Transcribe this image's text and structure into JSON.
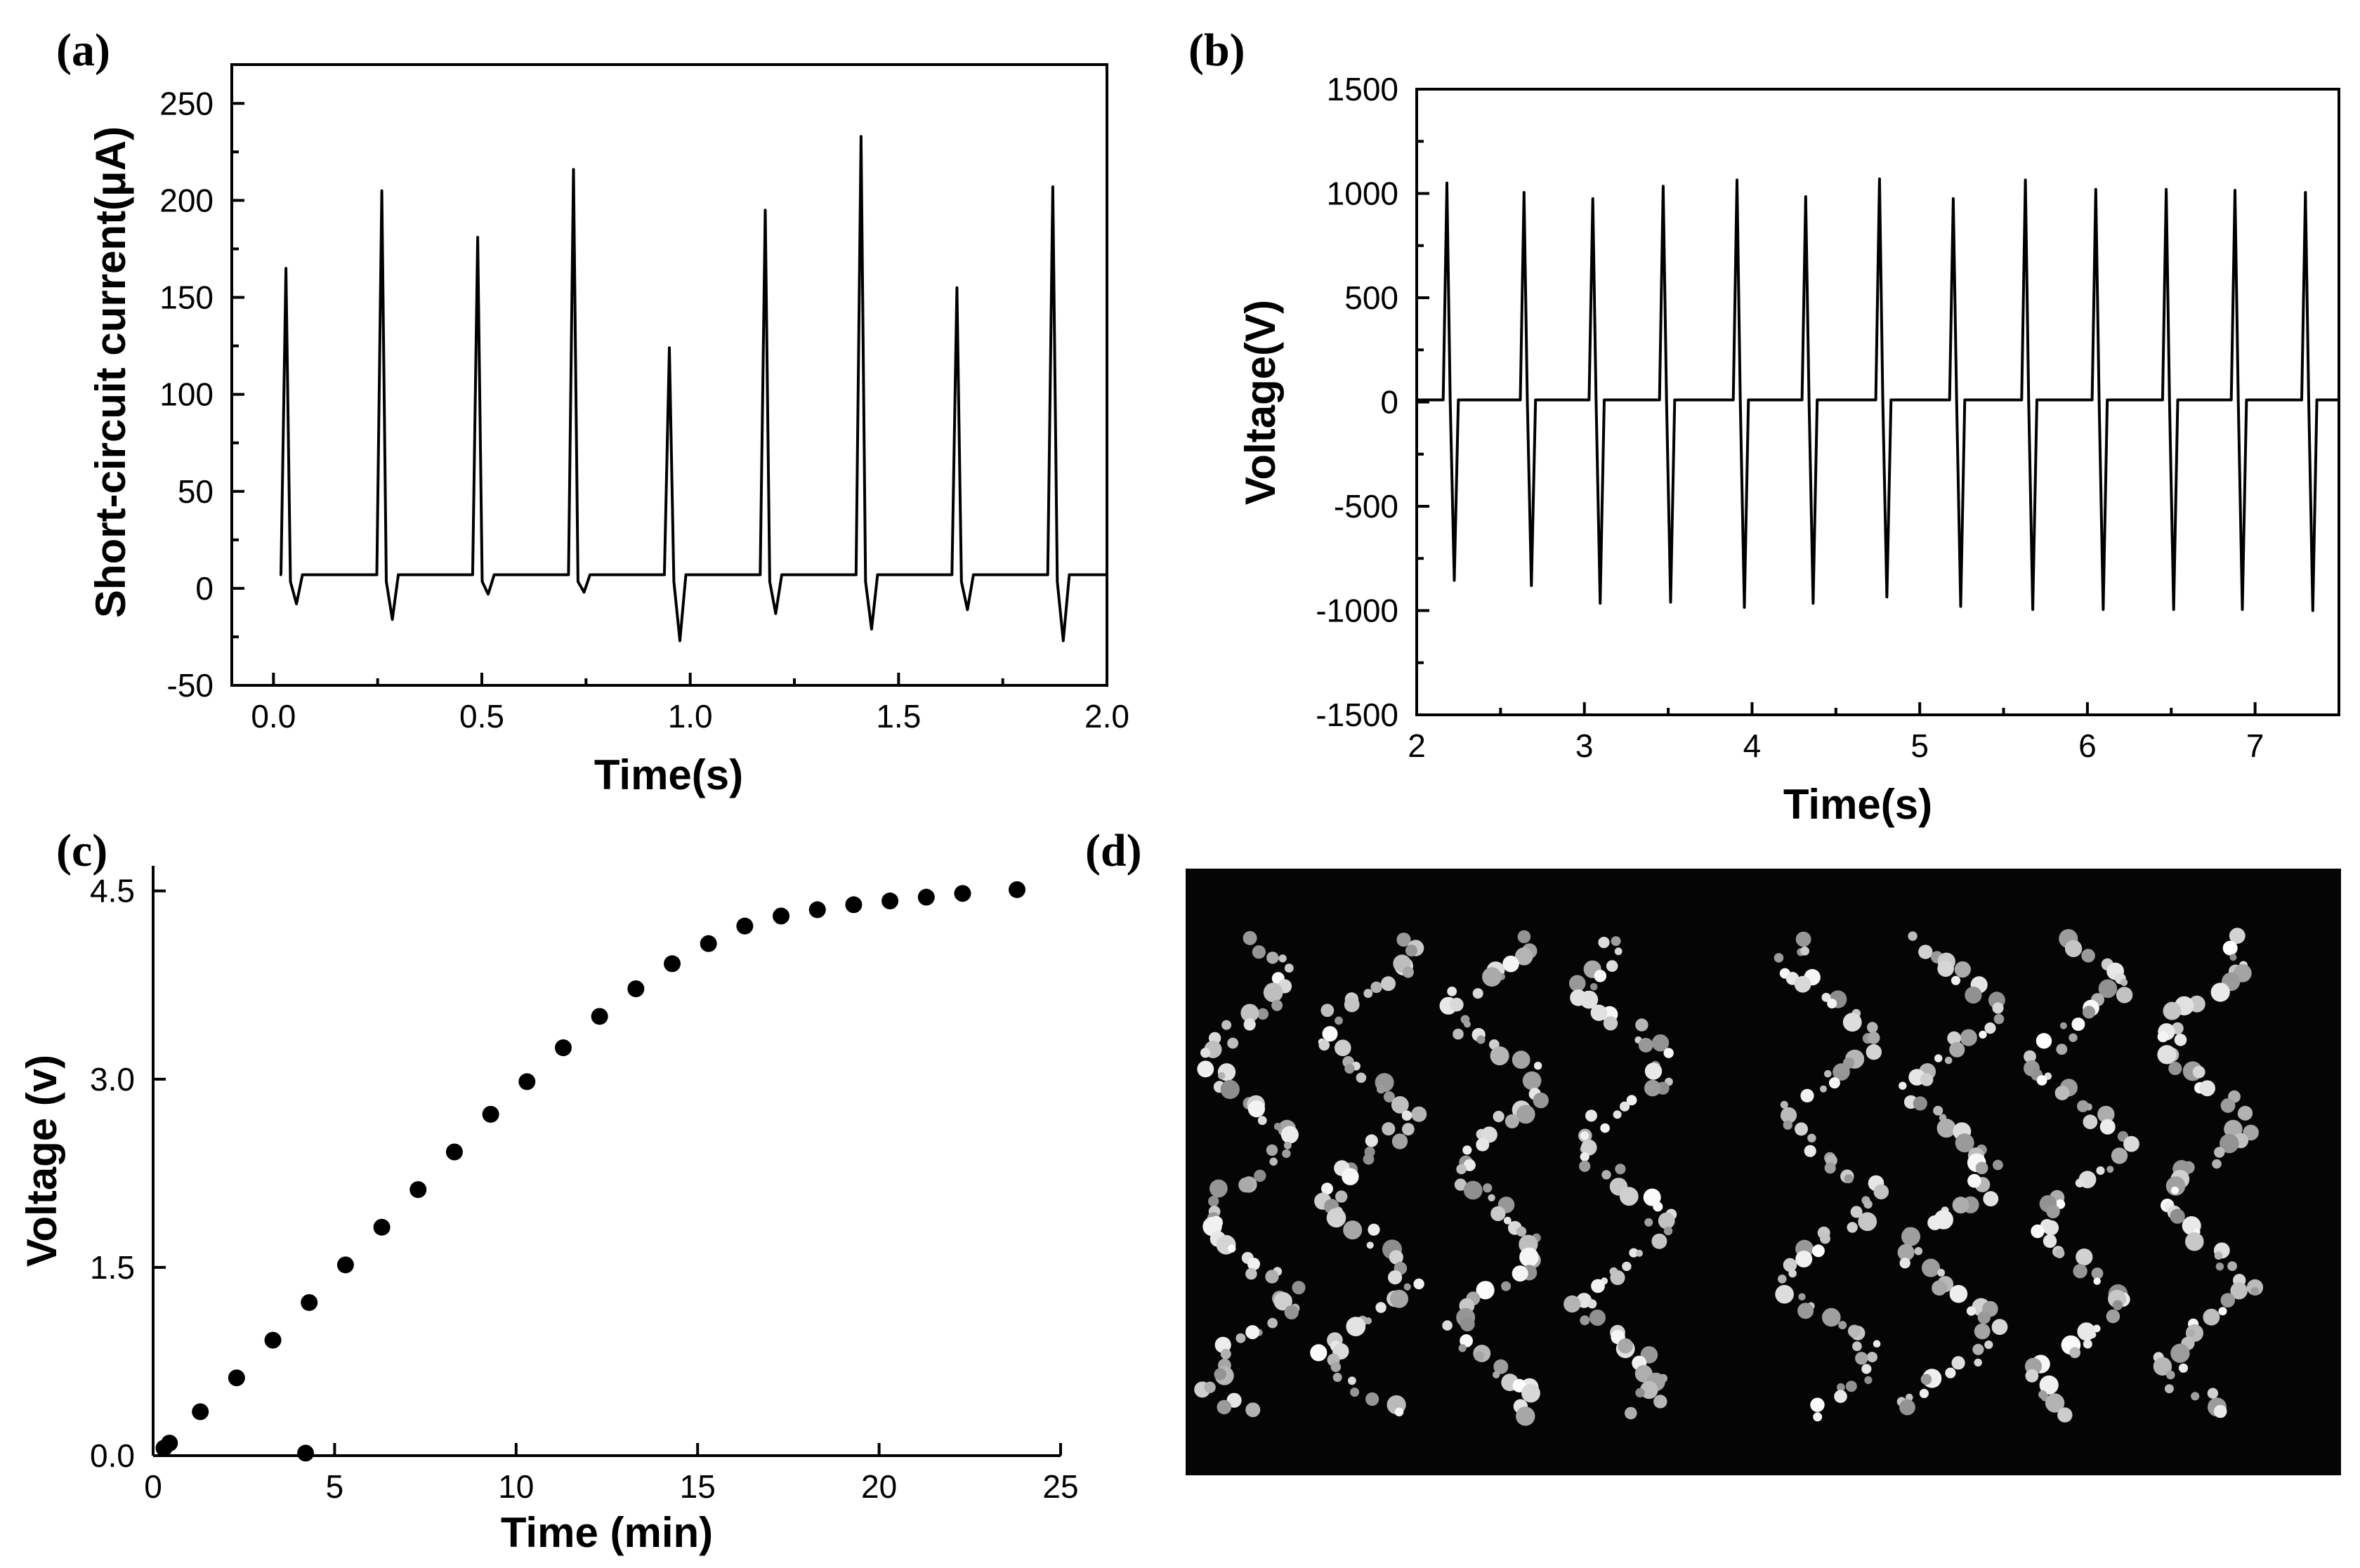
{
  "figure": {
    "panels": [
      "(a)",
      "(b)",
      "(c)",
      "(d)"
    ]
  },
  "chart_data": [
    {
      "id": "a",
      "type": "line",
      "label": "(a)",
      "xlabel": "Time(s)",
      "ylabel": "Short-circuit current(μA)",
      "xlim": [
        -0.1,
        2.0
      ],
      "ylim": [
        -50,
        270
      ],
      "xticks": [
        "0.0",
        "0.5",
        "1.0",
        "1.5",
        "2.0"
      ],
      "yticks": [
        "-50",
        "0",
        "50",
        "100",
        "150",
        "200",
        "250"
      ],
      "baseline": 7,
      "x_start": 0.02,
      "x_end": 2.0,
      "spike_times": [
        0.03,
        0.26,
        0.49,
        0.72,
        0.95,
        1.18,
        1.41,
        1.64,
        1.87
      ],
      "spike_peaks": [
        165,
        205,
        181,
        216,
        124,
        195,
        233,
        155,
        207
      ],
      "spike_troughs": [
        -8,
        -16,
        -3,
        -2,
        -27,
        -13,
        -21,
        -11,
        -27
      ]
    },
    {
      "id": "b",
      "type": "line",
      "label": "(b)",
      "xlabel": "Time(s)",
      "ylabel": "Voltage(V)",
      "xlim": [
        2.0,
        7.5
      ],
      "ylim": [
        -1500,
        1500
      ],
      "xticks": [
        "2",
        "3",
        "4",
        "5",
        "6",
        "7"
      ],
      "yticks": [
        "-1500",
        "-1000",
        "-500",
        "0",
        "500",
        "1000",
        "1500"
      ],
      "baseline": 10,
      "x_start": 2.0,
      "x_end": 7.5,
      "spike_times": [
        2.18,
        2.64,
        3.05,
        3.47,
        3.91,
        4.32,
        4.76,
        5.2,
        5.63,
        6.05,
        6.47,
        6.88,
        7.3
      ],
      "spike_peaks": [
        1050,
        1005,
        975,
        1035,
        1065,
        985,
        1070,
        975,
        1065,
        1020,
        1020,
        1015,
        1005
      ],
      "spike_troughs": [
        -855,
        -880,
        -965,
        -960,
        -985,
        -965,
        -935,
        -980,
        -995,
        -995,
        -995,
        -995,
        -1000
      ]
    },
    {
      "id": "c",
      "type": "scatter",
      "label": "(c)",
      "xlabel": "Time (min)",
      "ylabel": "Voltage (v)",
      "xlim": [
        0,
        25
      ],
      "ylim": [
        0,
        4.7
      ],
      "xticks": [
        "0",
        "5",
        "10",
        "15",
        "20",
        "25"
      ],
      "yticks": [
        "0.0",
        "1.5",
        "3.0",
        "4.5"
      ],
      "x": [
        0.3,
        0.45,
        1.3,
        2.3,
        3.3,
        4.3,
        5.3,
        6.3,
        7.3,
        8.3,
        9.3,
        10.3,
        11.3,
        12.3,
        13.3,
        14.3,
        15.3,
        16.3,
        17.3,
        18.3,
        19.3,
        20.3,
        21.3,
        22.3,
        23.8,
        4.2
      ],
      "y": [
        0.06,
        0.1,
        0.35,
        0.62,
        0.92,
        1.22,
        1.52,
        1.82,
        2.12,
        2.42,
        2.72,
        2.98,
        3.25,
        3.5,
        3.72,
        3.92,
        4.08,
        4.22,
        4.3,
        4.35,
        4.39,
        4.42,
        4.45,
        4.48,
        4.51,
        0.02
      ]
    }
  ]
}
